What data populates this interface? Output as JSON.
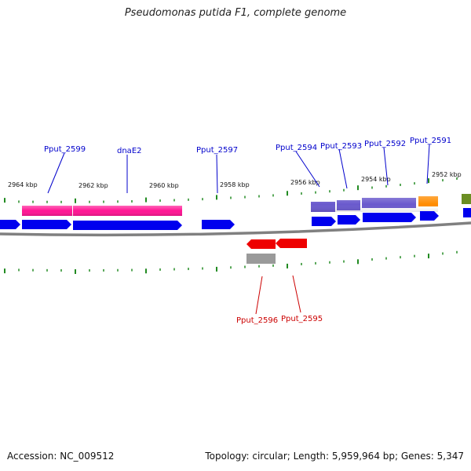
{
  "title": "Pseudomonas putida F1, complete genome",
  "footer": {
    "accession_label": "Accession: NC_009512",
    "summary": "Topology: circular; Length: 5,959,964 bp; Genes: 5,347"
  },
  "colors": {
    "backbone": "#808080",
    "tick": "#228b22",
    "forward_gene": "#0000ee",
    "reverse_gene": "#ee0000",
    "rna": "#ff1493",
    "pseudo": "#9a9a9a",
    "cog_purple": "#6a5acd",
    "cog_orange": "#ff8c00",
    "cog_olive": "#6b8e23",
    "label_forward": "#0000cc",
    "label_reverse": "#cc0000"
  },
  "scale_labels": [
    "2964 kbp",
    "2962 kbp",
    "2960 kbp",
    "2958 kbp",
    "2956 kbp",
    "2954 kbp",
    "2952 kbp"
  ],
  "gene_labels": {
    "forward": [
      "Pput_2599",
      "dnaE2",
      "Pput_2597",
      "Pput_2594",
      "Pput_2593",
      "Pput_2592",
      "Pput_2591"
    ],
    "reverse": [
      "Pput_2596",
      "Pput_2595"
    ]
  }
}
